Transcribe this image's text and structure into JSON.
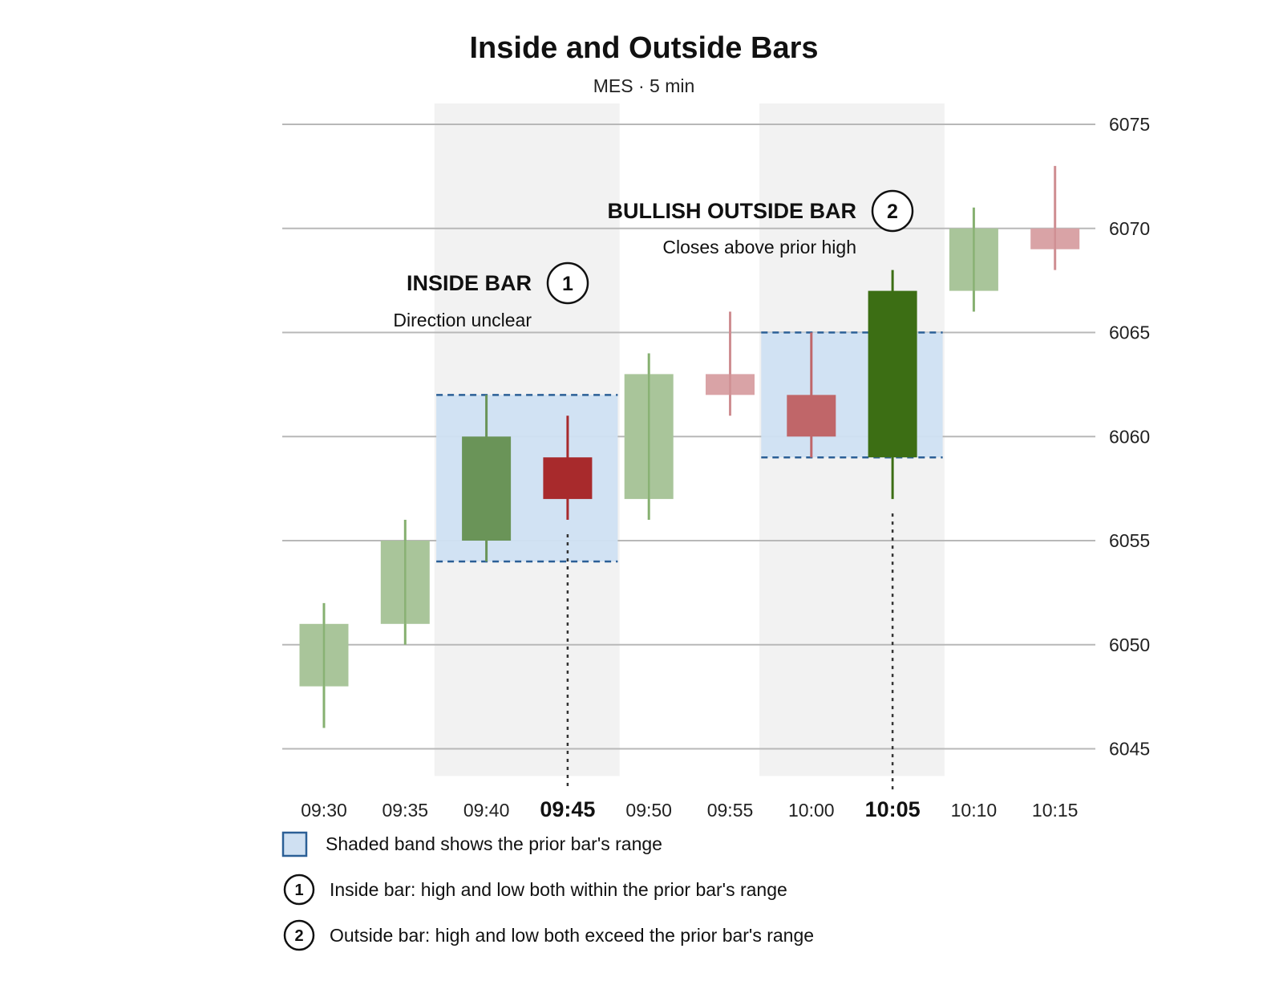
{
  "chart_data": {
    "type": "candlestick",
    "title": "Inside and Outside Bars",
    "subtitle": "MES · 5 min",
    "ylim": [
      6044,
      6076
    ],
    "yticks": [
      "6045",
      "6050",
      "6055",
      "6060",
      "6065",
      "6070",
      "6075"
    ],
    "ytick_values": [
      6045,
      6050,
      6055,
      6060,
      6065,
      6070,
      6075
    ],
    "grid": true,
    "bars": [
      {
        "time": "09:30",
        "open": 6048,
        "high": 6052,
        "low": 6046,
        "close": 6051
      },
      {
        "time": "09:35",
        "open": 6051,
        "high": 6056,
        "low": 6050,
        "close": 6055
      },
      {
        "time": "09:40",
        "open": 6055,
        "high": 6062,
        "low": 6054,
        "close": 6060
      },
      {
        "time": "09:45",
        "open": 6059,
        "high": 6061,
        "low": 6056,
        "close": 6057
      },
      {
        "time": "09:50",
        "open": 6057,
        "high": 6064,
        "low": 6056,
        "close": 6063
      },
      {
        "time": "09:55",
        "open": 6063,
        "high": 6066,
        "low": 6061,
        "close": 6062
      },
      {
        "time": "10:00",
        "open": 6062,
        "high": 6065,
        "low": 6059,
        "close": 6060
      },
      {
        "time": "10:05",
        "open": 6059,
        "high": 6068,
        "low": 6057,
        "close": 6067
      },
      {
        "time": "10:10",
        "open": 6067,
        "high": 6071,
        "low": 6066,
        "close": 6070
      },
      {
        "time": "10:15",
        "open": 6070,
        "high": 6073,
        "low": 6068,
        "close": 6069
      }
    ],
    "highlighted_times": [
      "09:45",
      "10:05"
    ],
    "range_bands": [
      {
        "from": "09:40",
        "to": "09:45",
        "low": 6054,
        "high": 6062
      },
      {
        "from": "10:00",
        "to": "10:05",
        "low": 6059,
        "high": 6065
      }
    ],
    "annotations": [
      {
        "badge": "1",
        "title": "INSIDE BAR",
        "text": "Direction unclear",
        "time": "09:45"
      },
      {
        "badge": "2",
        "title": "BULLISH OUTSIDE BAR",
        "text": "Closes above prior high",
        "time": "10:05"
      }
    ],
    "legend": [
      {
        "marker": "band",
        "text": "Shaded band shows the prior bar's range"
      },
      {
        "marker": "1",
        "text": "Inside bar: high and low both within the prior bar's range"
      },
      {
        "marker": "2",
        "text": "Outside bar: high and low both exceed the prior bar's range"
      }
    ],
    "colors": {
      "up_muted": "#a9c59a",
      "up_wick_muted": "#86b070",
      "down_muted": "#d9a3a6",
      "down_wick_muted": "#cf8e92",
      "up_focus": "#6a9458",
      "up_strong": "#3c6e14",
      "down_focus": "#a82a2c",
      "down_mid": "#c06669",
      "band_fill": "#cfe0f2",
      "band_border": "#2b5f96",
      "highlight_bg": "#f2f2f2",
      "grid": "#b8b8b8"
    }
  }
}
